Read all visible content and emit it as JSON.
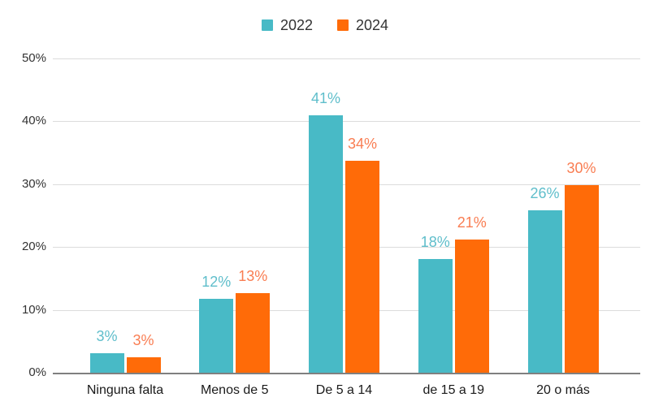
{
  "chart_data": {
    "type": "bar",
    "subtype": "grouped-vertical",
    "title": "",
    "xlabel": "",
    "ylabel": "",
    "categories": [
      "Ninguna falta",
      "Menos de 5",
      "De 5 a 14",
      "de 15 a 19",
      "20 o más"
    ],
    "series": [
      {
        "name": "2022",
        "color": "#48BAC6",
        "label_color": "#5FBECB",
        "values": [
          3,
          12,
          41,
          18,
          26
        ],
        "labels": [
          "3%",
          "12%",
          "41%",
          "18%",
          "26%"
        ],
        "bar_heights_pct": [
          3.1,
          11.8,
          40.9,
          18.1,
          25.9
        ]
      },
      {
        "name": "2024",
        "color": "#FF6B08",
        "label_color": "#F97D52",
        "values": [
          3,
          13,
          34,
          21,
          30
        ],
        "labels": [
          "3%",
          "13%",
          "34%",
          "21%",
          "30%"
        ],
        "bar_heights_pct": [
          2.5,
          12.6,
          33.7,
          21.2,
          29.9
        ]
      }
    ],
    "y_axis": {
      "tick_labels": [
        "0%",
        "10%",
        "20%",
        "30%",
        "40%",
        "50%"
      ],
      "tick_values": [
        0,
        10,
        20,
        30,
        40,
        50
      ],
      "min": 0,
      "max": 50,
      "grid": true
    },
    "legend_position": "top"
  },
  "colors": {
    "grid": "#DCDCDC",
    "axis_line": "#808080",
    "tick_text": "#333333",
    "category_text": "#1A1A1A",
    "legend_text": "#333333",
    "background": "#FFFFFF"
  }
}
